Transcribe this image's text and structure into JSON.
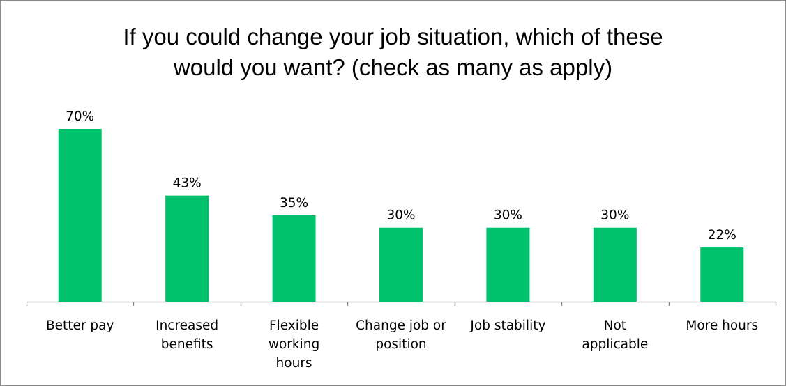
{
  "chart_data": {
    "type": "bar",
    "title_lines": [
      "If you could change your job situation, which of these",
      "would you want? (check as many as apply)"
    ],
    "categories": [
      [
        "Better pay"
      ],
      [
        "Increased",
        "benefits"
      ],
      [
        "Flexible",
        "working",
        "hours"
      ],
      [
        "Change job or",
        "position"
      ],
      [
        "Job stability"
      ],
      [
        "Not",
        "applicable"
      ],
      [
        "More hours"
      ]
    ],
    "values": [
      70,
      43,
      35,
      30,
      30,
      30,
      22
    ],
    "data_labels": [
      "70%",
      "43%",
      "35%",
      "30%",
      "30%",
      "30%",
      "22%"
    ],
    "ylim": [
      0,
      80
    ],
    "grid": false,
    "legend": "none",
    "bar_color": "#00c26d",
    "axis_color": "#868686"
  }
}
